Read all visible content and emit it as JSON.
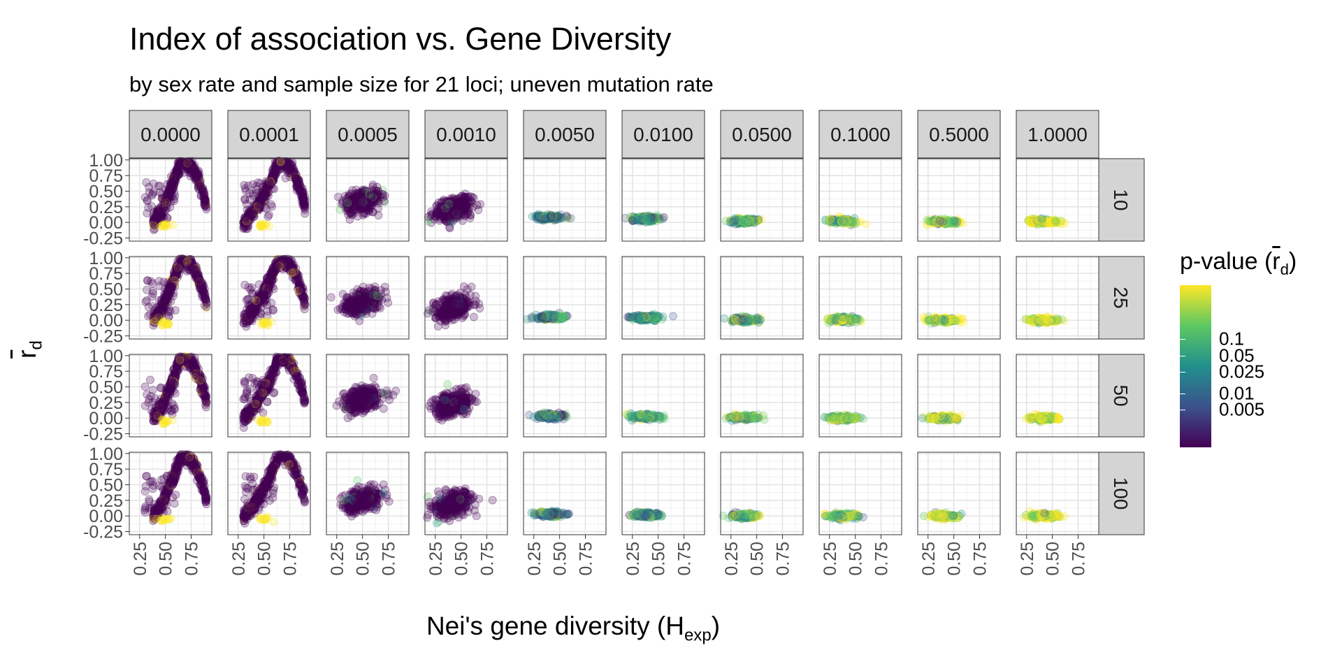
{
  "title": "Index of association vs. Gene Diversity",
  "subtitle": "by sex rate and sample size for 21 loci; uneven mutation rate",
  "xlabel_main": "Nei's gene diversity (H",
  "xlabel_sub": "exp",
  "xlabel_close": ")",
  "ylabel_main": "r",
  "ylabel_sub": "d",
  "legend": {
    "title_main": "p-value (",
    "title_r": "r",
    "title_sub": "d",
    "title_close": ")",
    "labels": [
      {
        "text": "0.1",
        "value": 0.1
      },
      {
        "text": "0.05",
        "value": 0.05
      },
      {
        "text": "0.025",
        "value": 0.025
      },
      {
        "text": "0.01",
        "value": 0.01
      },
      {
        "text": "0.005",
        "value": 0.005
      }
    ],
    "colors": [
      "#440154",
      "#3b528b",
      "#21908c",
      "#5dc863",
      "#fde725"
    ]
  },
  "chart_data": {
    "type": "scatter",
    "facet_cols": [
      "0.0000",
      "0.0001",
      "0.0005",
      "0.0010",
      "0.0050",
      "0.0100",
      "0.0500",
      "0.1000",
      "0.5000",
      "1.0000"
    ],
    "facet_rows": [
      "10",
      "25",
      "50",
      "100"
    ],
    "x_ticks": [
      "0.25",
      "0.50",
      "0.75"
    ],
    "y_ticks": [
      "-0.25",
      "0.00",
      "0.25",
      "0.50",
      "0.75",
      "1.00"
    ],
    "xlim": [
      0.15,
      0.95
    ],
    "ylim": [
      -0.3,
      1.02
    ],
    "grid": true,
    "legend_position": "right",
    "point_alpha": 0.25,
    "column_patterns": [
      {
        "col": "0.0000",
        "shape": "arch",
        "x_range": [
          0.38,
          0.9
        ],
        "peak_x": 0.65,
        "peak_y": 0.98,
        "low_y": 0.0
      },
      {
        "col": "0.0001",
        "shape": "arch",
        "x_range": [
          0.3,
          0.9
        ],
        "peak_x": 0.65,
        "peak_y": 0.98,
        "low_y": 0.0
      },
      {
        "col": "0.0005",
        "shape": "cloud",
        "x_center": 0.5,
        "y_center": [
          0.35,
          0.3,
          0.3,
          0.25
        ]
      },
      {
        "col": "0.0010",
        "shape": "cloud",
        "x_center": 0.42,
        "y_center": [
          0.22,
          0.2,
          0.22,
          0.18
        ]
      },
      {
        "col": "0.0050",
        "shape": "band",
        "x_center": 0.4,
        "y_center": [
          0.08,
          0.05,
          0.03,
          0.03
        ]
      },
      {
        "col": "0.0100",
        "shape": "band",
        "x_center": 0.38,
        "y_center": [
          0.06,
          0.04,
          0.02,
          0.02
        ]
      },
      {
        "col": "0.0500",
        "shape": "band",
        "x_center": 0.38,
        "y_center": [
          0.02,
          0.01,
          0.01,
          0.0
        ]
      },
      {
        "col": "0.1000",
        "shape": "band",
        "x_center": 0.38,
        "y_center": [
          0.02,
          0.01,
          0.0,
          0.0
        ]
      },
      {
        "col": "0.5000",
        "shape": "band",
        "x_center": 0.4,
        "y_center": [
          0.01,
          0.0,
          0.0,
          0.0
        ]
      },
      {
        "col": "1.0000",
        "shape": "band",
        "x_center": 0.42,
        "y_center": [
          0.01,
          0.0,
          0.0,
          0.0
        ]
      }
    ]
  }
}
